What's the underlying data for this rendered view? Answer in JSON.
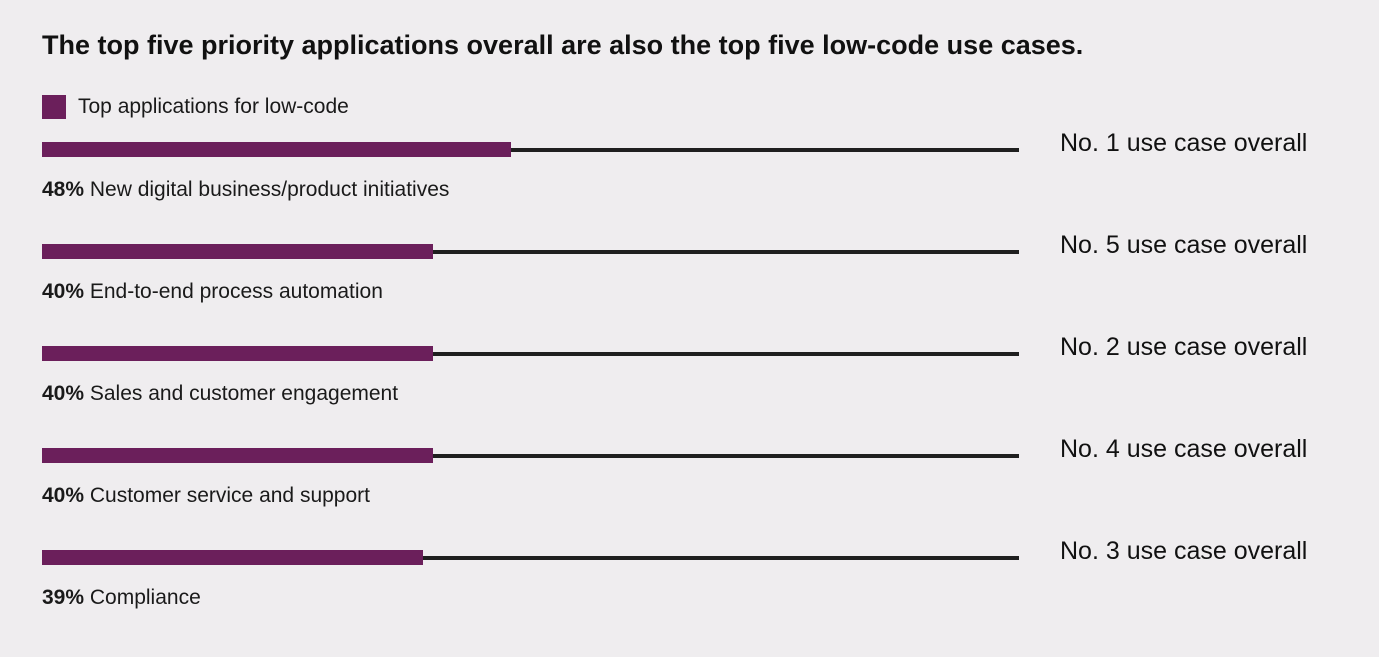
{
  "chart_data": {
    "type": "bar",
    "title": "The top five priority applications overall are also the top five low-code use cases.",
    "legend": {
      "position": "top-left",
      "entries": [
        {
          "name": "Top applications for low-code",
          "color": "#6b1f5b"
        }
      ]
    },
    "xlim": [
      0,
      100
    ],
    "series": [
      {
        "name": "Top applications for low-code",
        "values": [
          48,
          40,
          40,
          40,
          39
        ]
      }
    ],
    "categories": [
      "New digital business/product initiatives",
      "End-to-end process automation",
      "Sales and customer engagement",
      "Customer service and support",
      "Compliance"
    ],
    "rows": [
      {
        "pct": "48%",
        "label": "New digital business/product initiatives",
        "value": 48,
        "rank": "No. 1 use case overall"
      },
      {
        "pct": "40%",
        "label": "End-to-end process automation",
        "value": 40,
        "rank": "No. 5 use case overall"
      },
      {
        "pct": "40%",
        "label": "Sales and customer engagement",
        "value": 40,
        "rank": "No. 2 use case overall"
      },
      {
        "pct": "40%",
        "label": "Customer service and support",
        "value": 40,
        "rank": "No. 4 use case overall"
      },
      {
        "pct": "39%",
        "label": "Compliance",
        "value": 39,
        "rank": "No. 3 use case overall"
      }
    ]
  },
  "colors": {
    "bar": "#6b1f5b",
    "track": "#1f1f1f",
    "background": "#efedef"
  }
}
